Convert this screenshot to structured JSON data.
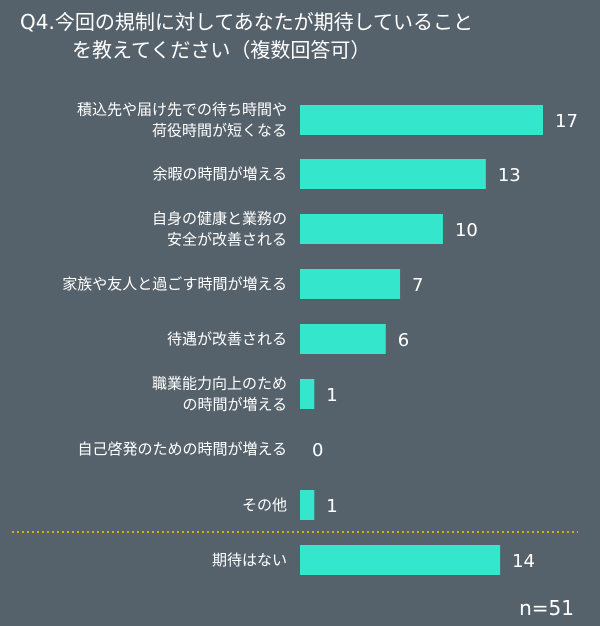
{
  "title_line1": "Q4.今回の規制に対してあなたが期待していること",
  "title_line2": "を教えてください（複数回答可）",
  "sample_size": "n=51",
  "colors": {
    "background": "#56626b",
    "bar": "#33e6cc",
    "divider": "#d4b400",
    "text": "#ffffff"
  },
  "chart_data": {
    "type": "bar",
    "orientation": "horizontal",
    "title": "Q4.今回の規制に対してあなたが期待していることを教えてください（複数回答可）",
    "categories": [
      [
        "積込先や届け先での待ち時間や",
        "荷役時間が短くなる"
      ],
      [
        "余暇の時間が増える"
      ],
      [
        "自身の健康と業務の",
        "安全が改善される"
      ],
      [
        "家族や友人と過ごす時間が増える"
      ],
      [
        "待遇が改善される"
      ],
      [
        "職業能力向上のため",
        "の時間が増える"
      ],
      [
        "自己啓発のための時間が増える"
      ],
      [
        "その他"
      ],
      [
        "期待はない"
      ]
    ],
    "values": [
      17,
      13,
      10,
      7,
      6,
      1,
      0,
      1,
      14
    ],
    "xlim": [
      0,
      17
    ],
    "grid": false,
    "legend": "none",
    "separator_before_last": true
  }
}
